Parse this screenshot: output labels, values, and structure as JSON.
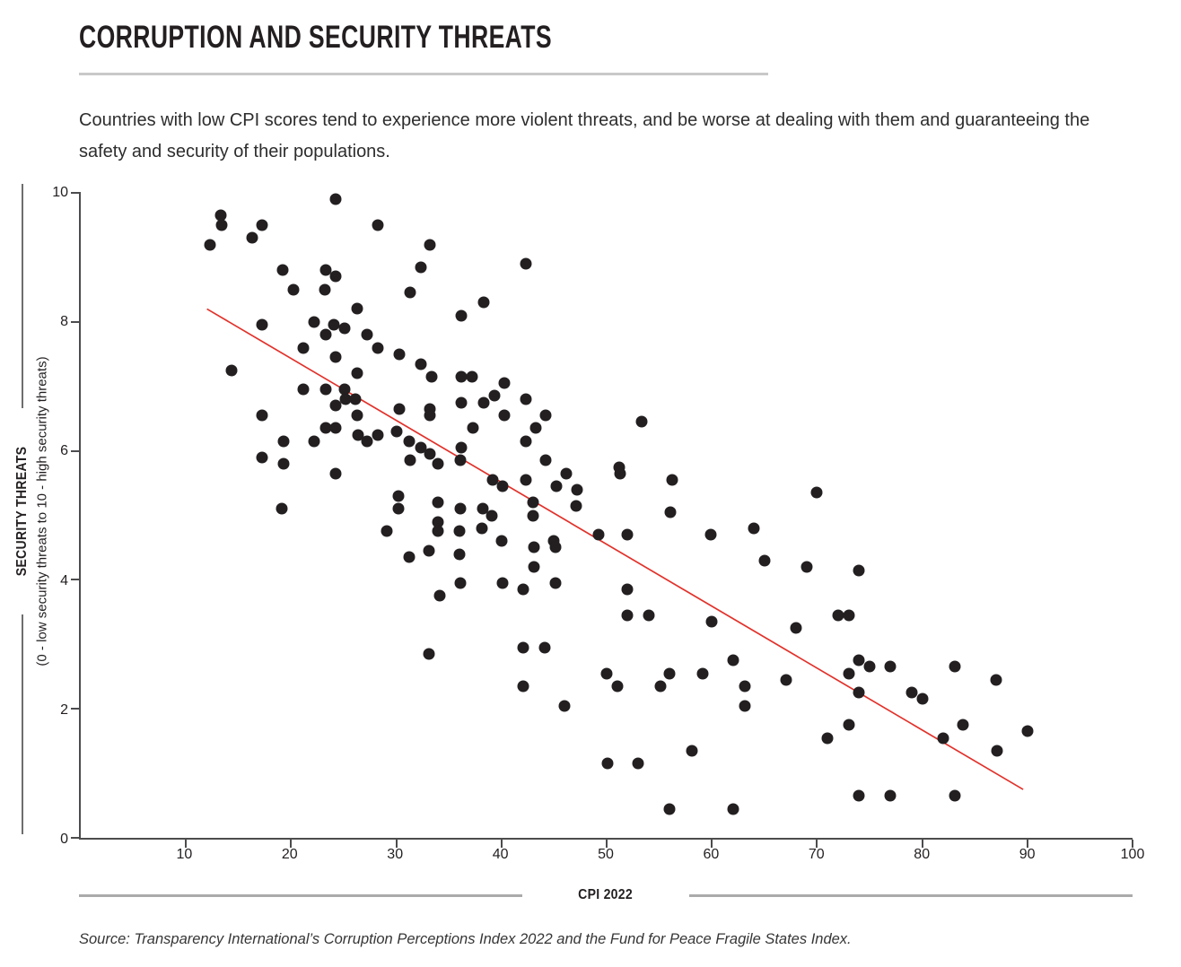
{
  "header": {
    "title": "CORRUPTION AND SECURITY THREATS",
    "description": "Countries with low CPI scores tend to experience more violent threats, and be worse at dealing with them and guaranteeing the safety and security of their populations."
  },
  "chart_data": {
    "type": "scatter",
    "xlabel": "CPI 2022",
    "ylabel": "SECURITY THREATS",
    "ylabel_sub": "(0 - low security threats to 10 - high security threats)",
    "xlim": [
      0,
      100
    ],
    "ylim": [
      0,
      10
    ],
    "x_ticks": [
      10,
      20,
      30,
      40,
      50,
      60,
      70,
      80,
      90,
      100
    ],
    "y_ticks": [
      0,
      2,
      4,
      6,
      8,
      10
    ],
    "grid": false,
    "legend_position": "none",
    "point_color": "#231f20",
    "axis_color": "#4c4c4e",
    "trend_line": {
      "x1": 12,
      "y1": 8.2,
      "x2": 89.6,
      "y2": 0.75,
      "color": "#e2312a"
    },
    "series": [
      {
        "name": "countries",
        "points": [
          [
            12.3,
            9.2
          ],
          [
            13.3,
            9.65
          ],
          [
            13.4,
            9.5
          ],
          [
            14.3,
            7.25
          ],
          [
            16.3,
            9.3
          ],
          [
            17.2,
            9.5
          ],
          [
            17.2,
            7.95
          ],
          [
            17.2,
            6.55
          ],
          [
            17.2,
            5.9
          ],
          [
            19.2,
            8.8
          ],
          [
            19.3,
            6.15
          ],
          [
            19.3,
            5.8
          ],
          [
            19.1,
            5.1
          ],
          [
            20.2,
            8.5
          ],
          [
            21.2,
            7.6
          ],
          [
            21.2,
            6.95
          ],
          [
            22.2,
            8.0
          ],
          [
            22.2,
            6.15
          ],
          [
            23.2,
            8.5
          ],
          [
            23.3,
            8.8
          ],
          [
            23.3,
            7.8
          ],
          [
            23.3,
            6.95
          ],
          [
            23.3,
            6.35
          ],
          [
            24.2,
            9.9
          ],
          [
            24.2,
            8.7
          ],
          [
            24.1,
            7.95
          ],
          [
            24.2,
            7.45
          ],
          [
            24.2,
            6.7
          ],
          [
            24.2,
            6.35
          ],
          [
            24.2,
            5.65
          ],
          [
            25.1,
            7.9
          ],
          [
            25.1,
            6.95
          ],
          [
            25.2,
            6.8
          ],
          [
            26.1,
            6.8
          ],
          [
            26.3,
            8.2
          ],
          [
            26.3,
            7.2
          ],
          [
            26.3,
            6.55
          ],
          [
            26.4,
            6.25
          ],
          [
            27.2,
            7.8
          ],
          [
            27.2,
            6.15
          ],
          [
            28.2,
            9.5
          ],
          [
            28.2,
            7.6
          ],
          [
            28.2,
            6.25
          ],
          [
            29.1,
            4.75
          ],
          [
            30.0,
            6.3
          ],
          [
            30.3,
            7.5
          ],
          [
            30.3,
            6.65
          ],
          [
            30.2,
            5.3
          ],
          [
            30.2,
            5.1
          ],
          [
            31.3,
            8.45
          ],
          [
            31.2,
            6.15
          ],
          [
            31.3,
            5.85
          ],
          [
            31.2,
            4.35
          ],
          [
            32.3,
            8.85
          ],
          [
            32.3,
            7.35
          ],
          [
            32.3,
            6.05
          ],
          [
            33.2,
            9.2
          ],
          [
            33.4,
            7.15
          ],
          [
            33.2,
            6.65
          ],
          [
            33.2,
            6.55
          ],
          [
            33.2,
            5.95
          ],
          [
            33.1,
            4.45
          ],
          [
            33.1,
            2.85
          ],
          [
            34.0,
            5.8
          ],
          [
            34.0,
            5.2
          ],
          [
            34.0,
            4.9
          ],
          [
            34.0,
            4.75
          ],
          [
            34.1,
            3.75
          ],
          [
            36.2,
            8.1
          ],
          [
            36.2,
            7.15
          ],
          [
            36.2,
            6.75
          ],
          [
            36.2,
            6.05
          ],
          [
            36.1,
            5.85
          ],
          [
            36.1,
            5.1
          ],
          [
            36.0,
            4.75
          ],
          [
            36.0,
            4.4
          ],
          [
            36.1,
            3.95
          ],
          [
            37.2,
            7.15
          ],
          [
            37.3,
            6.35
          ],
          [
            38.3,
            8.3
          ],
          [
            38.3,
            6.75
          ],
          [
            38.2,
            5.1
          ],
          [
            38.1,
            4.8
          ],
          [
            39.3,
            6.85
          ],
          [
            39.2,
            5.55
          ],
          [
            39.1,
            5.0
          ],
          [
            40.3,
            7.05
          ],
          [
            40.3,
            6.55
          ],
          [
            40.1,
            5.45
          ],
          [
            40.0,
            4.6
          ],
          [
            40.1,
            3.95
          ],
          [
            42.3,
            8.9
          ],
          [
            42.3,
            6.8
          ],
          [
            42.3,
            6.15
          ],
          [
            42.3,
            5.55
          ],
          [
            43.0,
            5.2
          ],
          [
            43.0,
            5.0
          ],
          [
            42.1,
            3.85
          ],
          [
            42.1,
            2.95
          ],
          [
            42.1,
            2.35
          ],
          [
            43.3,
            6.35
          ],
          [
            43.1,
            4.5
          ],
          [
            43.1,
            4.2
          ],
          [
            44.2,
            6.55
          ],
          [
            44.2,
            5.85
          ],
          [
            44.1,
            2.95
          ],
          [
            45.2,
            5.45
          ],
          [
            45.0,
            4.6
          ],
          [
            45.1,
            4.5
          ],
          [
            45.1,
            3.95
          ],
          [
            46.2,
            5.65
          ],
          [
            46.0,
            2.05
          ],
          [
            47.2,
            5.4
          ],
          [
            47.1,
            5.15
          ],
          [
            49.2,
            4.7
          ],
          [
            50.0,
            2.55
          ],
          [
            50.1,
            1.15
          ],
          [
            51.2,
            5.75
          ],
          [
            51.3,
            5.65
          ],
          [
            51.0,
            2.35
          ],
          [
            52.0,
            4.7
          ],
          [
            52.0,
            3.85
          ],
          [
            52.0,
            3.45
          ],
          [
            53.3,
            6.45
          ],
          [
            53.0,
            1.15
          ],
          [
            54.0,
            3.45
          ],
          [
            55.1,
            2.35
          ],
          [
            56.2,
            5.55
          ],
          [
            56.1,
            5.05
          ],
          [
            56.0,
            2.55
          ],
          [
            56.0,
            0.45
          ],
          [
            58.1,
            1.35
          ],
          [
            59.9,
            4.7
          ],
          [
            59.1,
            2.55
          ],
          [
            60.0,
            3.35
          ],
          [
            62.0,
            2.75
          ],
          [
            62.0,
            0.45
          ],
          [
            63.1,
            2.35
          ],
          [
            63.1,
            2.05
          ],
          [
            64.0,
            4.8
          ],
          [
            65.0,
            4.3
          ],
          [
            67.1,
            2.45
          ],
          [
            68.0,
            3.25
          ],
          [
            69.0,
            4.2
          ],
          [
            70.0,
            5.35
          ],
          [
            71.0,
            1.55
          ],
          [
            72.0,
            3.45
          ],
          [
            73.0,
            3.45
          ],
          [
            73.0,
            2.55
          ],
          [
            73.0,
            1.75
          ],
          [
            74.0,
            4.15
          ],
          [
            74.0,
            2.75
          ],
          [
            74.0,
            2.25
          ],
          [
            74.0,
            0.65
          ],
          [
            75.0,
            2.65
          ],
          [
            77.0,
            2.65
          ],
          [
            77.0,
            0.65
          ],
          [
            79.0,
            2.25
          ],
          [
            80.0,
            2.15
          ],
          [
            82.0,
            1.55
          ],
          [
            83.1,
            2.65
          ],
          [
            83.9,
            1.75
          ],
          [
            83.1,
            0.65
          ],
          [
            87.0,
            2.45
          ],
          [
            87.1,
            1.35
          ],
          [
            90.0,
            1.65
          ]
        ]
      }
    ]
  },
  "footer": {
    "source": "Source: Transparency International’s Corruption Perceptions Index 2022 and the Fund for Peace Fragile States Index."
  }
}
